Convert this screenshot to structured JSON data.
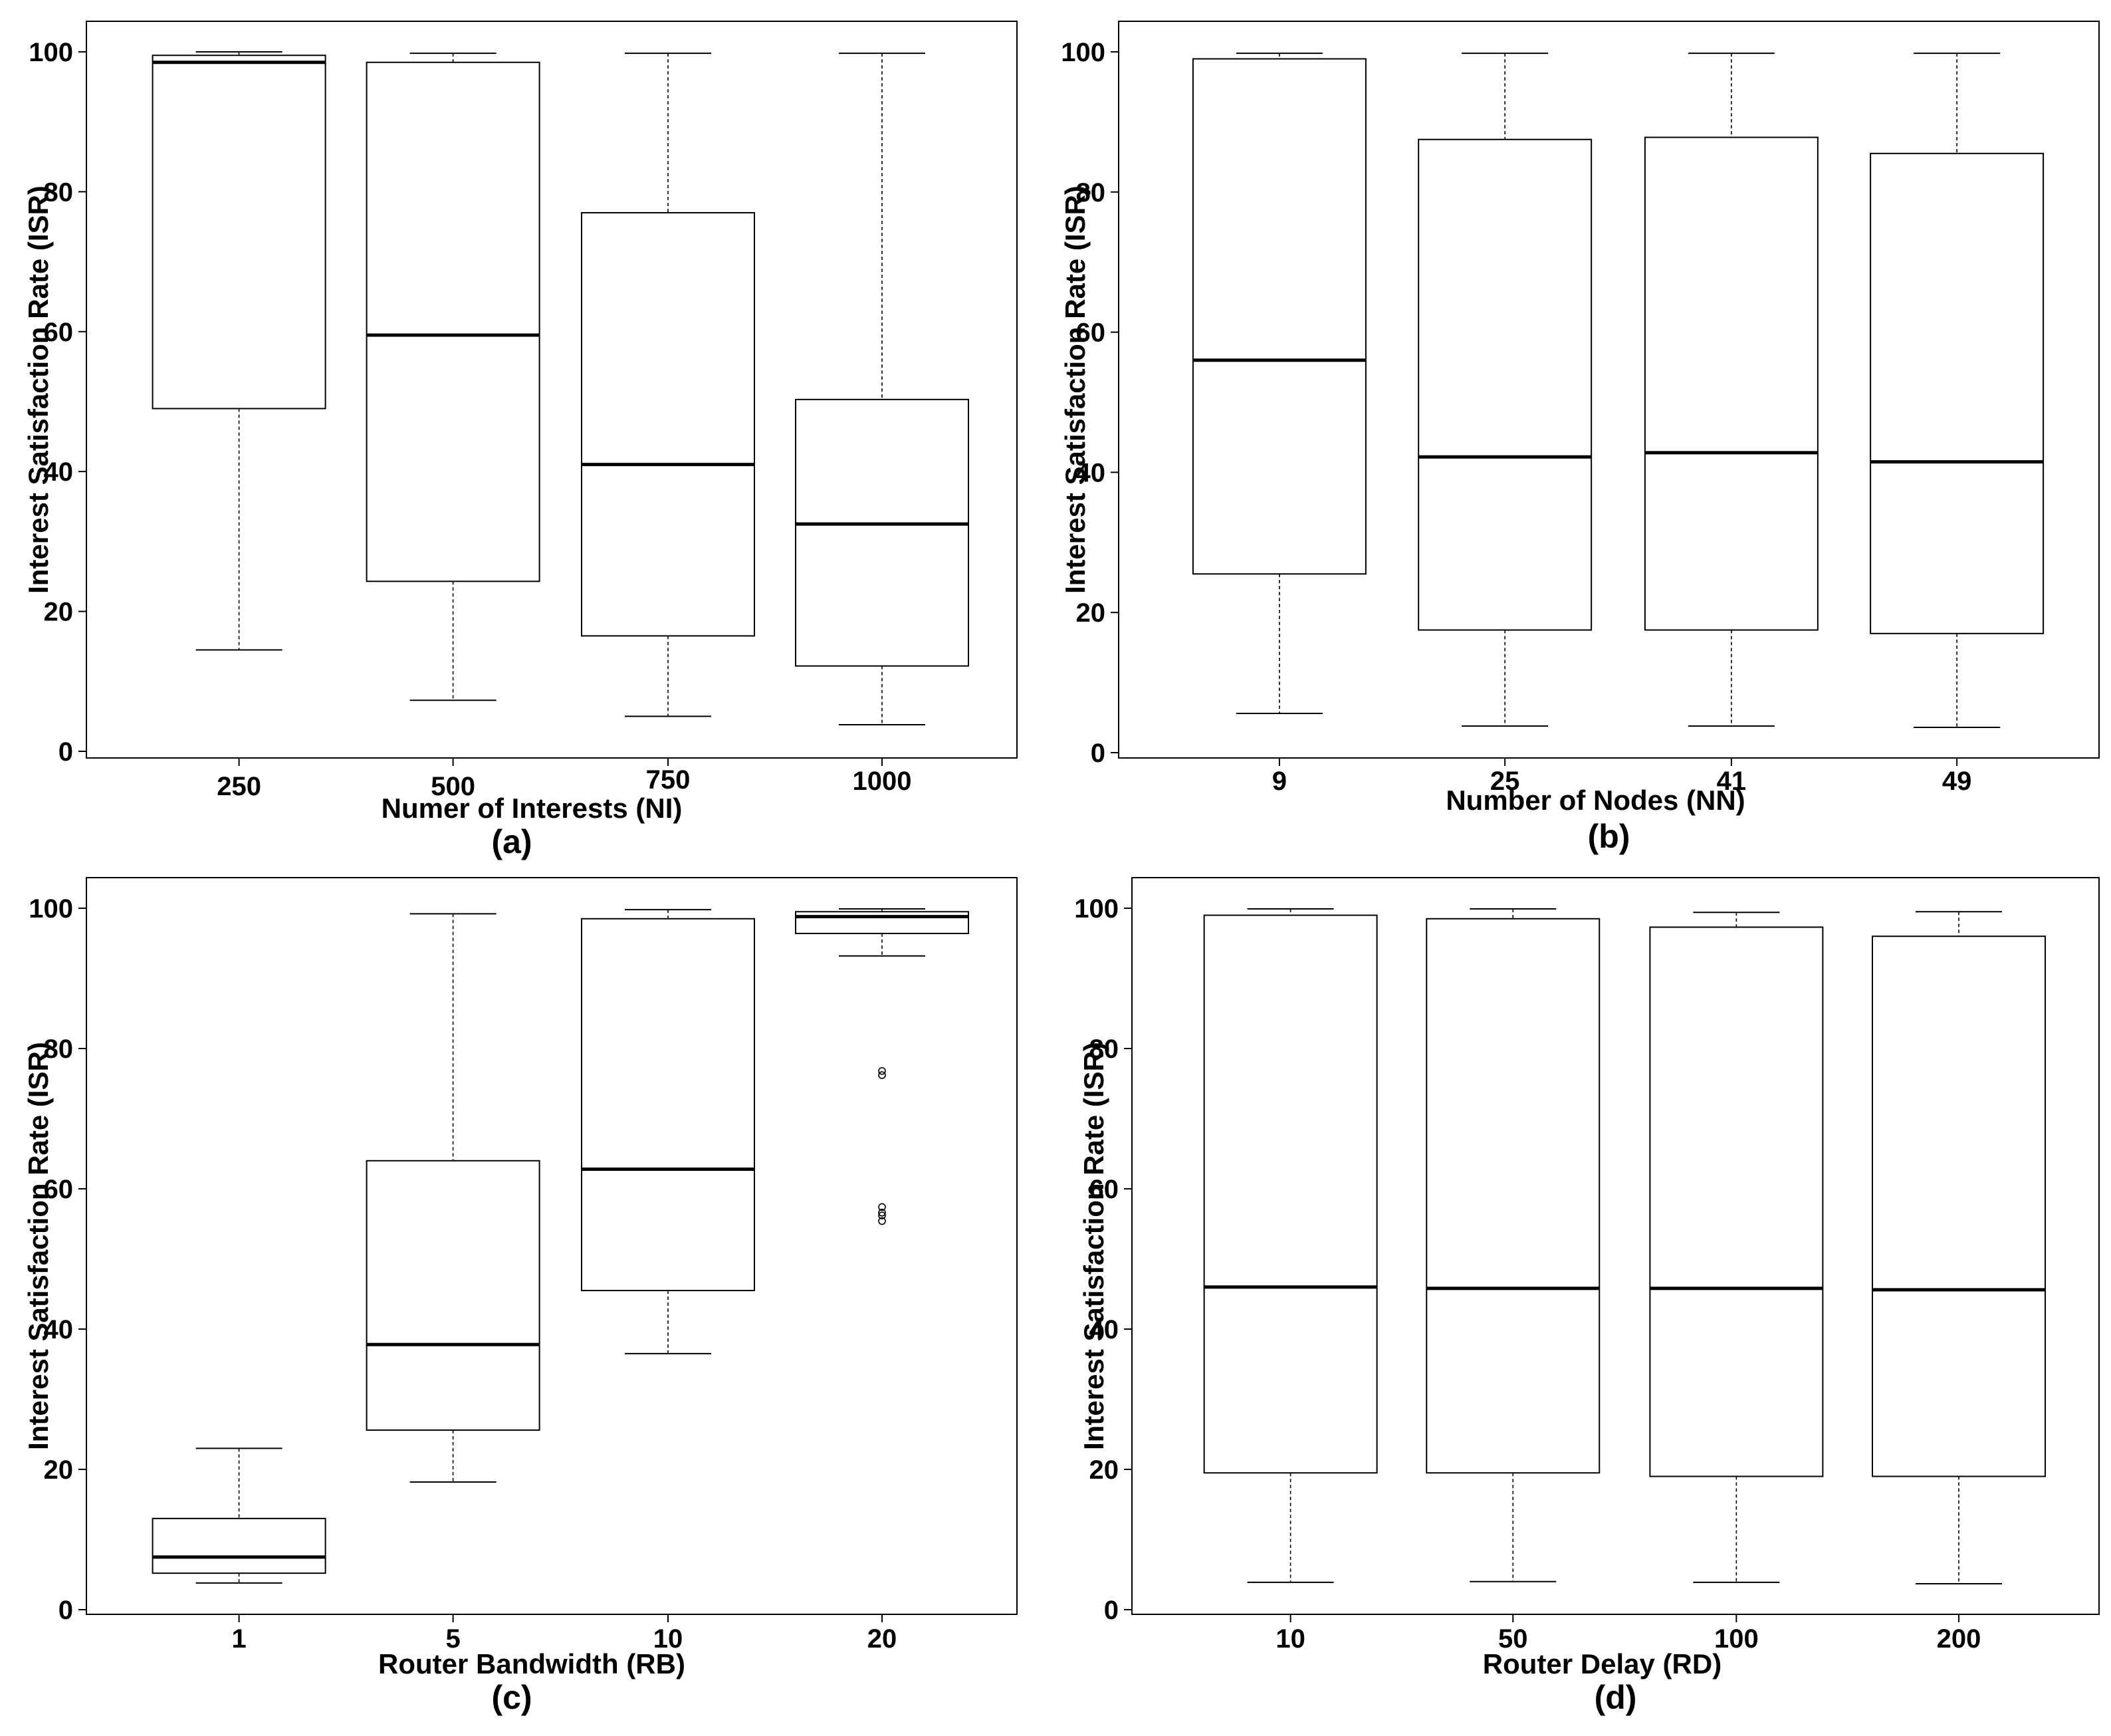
{
  "chart_data": [
    {
      "type": "box",
      "panel_label": "(a)",
      "xlabel": "Numer of Interests (NI)",
      "ylabel": "Interest Satisfaction Rate (ISR)",
      "categories": [
        "250",
        "500",
        "750",
        "1000"
      ],
      "ylim": [
        0,
        100
      ],
      "yticks": [
        "0",
        "20",
        "40",
        "60",
        "80",
        "100"
      ],
      "boxes": [
        {
          "whisker_low": 14.5,
          "q1": 49,
          "median": 98.5,
          "q3": 99.5,
          "whisker_high": 100
        },
        {
          "whisker_low": 7.3,
          "q1": 24.3,
          "median": 59.5,
          "q3": 98.5,
          "whisker_high": 99.8
        },
        {
          "whisker_low": 5,
          "q1": 16.5,
          "median": 41,
          "q3": 77,
          "whisker_high": 99.8
        },
        {
          "whisker_low": 3.8,
          "q1": 12.2,
          "median": 32.5,
          "q3": 50.3,
          "whisker_high": 99.8
        }
      ],
      "outliers": []
    },
    {
      "type": "box",
      "panel_label": "(b)",
      "xlabel": "Number of Nodes (NN)",
      "ylabel": "Interest Satisfaction Rate (ISR)",
      "categories": [
        "9",
        "25",
        "41",
        "49"
      ],
      "ylim": [
        0,
        100
      ],
      "yticks": [
        "0",
        "20",
        "40",
        "60",
        "80",
        "100"
      ],
      "boxes": [
        {
          "whisker_low": 5.6,
          "q1": 25.5,
          "median": 56,
          "q3": 99,
          "whisker_high": 99.8
        },
        {
          "whisker_low": 3.8,
          "q1": 17.5,
          "median": 42.2,
          "q3": 87.5,
          "whisker_high": 99.8
        },
        {
          "whisker_low": 3.8,
          "q1": 17.5,
          "median": 42.8,
          "q3": 87.8,
          "whisker_high": 99.8
        },
        {
          "whisker_low": 3.6,
          "q1": 17,
          "median": 41.5,
          "q3": 85.5,
          "whisker_high": 99.8
        }
      ],
      "outliers": []
    },
    {
      "type": "box",
      "panel_label": "(c)",
      "xlabel": "Router Bandwidth (RB)",
      "ylabel": "Interest Satisfaction Rate (ISR)",
      "categories": [
        "1",
        "5",
        "10",
        "20"
      ],
      "ylim": [
        0,
        100
      ],
      "yticks": [
        "0",
        "20",
        "40",
        "60",
        "80",
        "100"
      ],
      "boxes": [
        {
          "whisker_low": 3.8,
          "q1": 5.2,
          "median": 7.5,
          "q3": 13,
          "whisker_high": 23
        },
        {
          "whisker_low": 18.2,
          "q1": 25.6,
          "median": 37.8,
          "q3": 64,
          "whisker_high": 99.2
        },
        {
          "whisker_low": 36.5,
          "q1": 45.5,
          "median": 62.8,
          "q3": 98.5,
          "whisker_high": 99.8
        },
        {
          "whisker_low": 93.2,
          "q1": 96.4,
          "median": 98.8,
          "q3": 99.5,
          "whisker_high": 99.9
        }
      ],
      "outliers": [
        {
          "category": "20",
          "values": [
            76.8,
            76.2,
            57.4,
            56.6,
            56.2,
            55.4
          ]
        }
      ]
    },
    {
      "type": "box",
      "panel_label": "(d)",
      "xlabel": "Router Delay (RD)",
      "ylabel": "Interest Satisfaction Rate (ISR)",
      "categories": [
        "10",
        "50",
        "100",
        "200"
      ],
      "ylim": [
        0,
        100
      ],
      "yticks": [
        "0",
        "20",
        "40",
        "60",
        "80",
        "100"
      ],
      "boxes": [
        {
          "whisker_low": 3.9,
          "q1": 19.5,
          "median": 46,
          "q3": 99,
          "whisker_high": 99.9
        },
        {
          "whisker_low": 4,
          "q1": 19.5,
          "median": 45.8,
          "q3": 98.5,
          "whisker_high": 99.9
        },
        {
          "whisker_low": 3.9,
          "q1": 19,
          "median": 45.8,
          "q3": 97.3,
          "whisker_high": 99.4
        },
        {
          "whisker_low": 3.7,
          "q1": 19,
          "median": 45.6,
          "q3": 96,
          "whisker_high": 99.5
        }
      ],
      "outliers": []
    }
  ]
}
